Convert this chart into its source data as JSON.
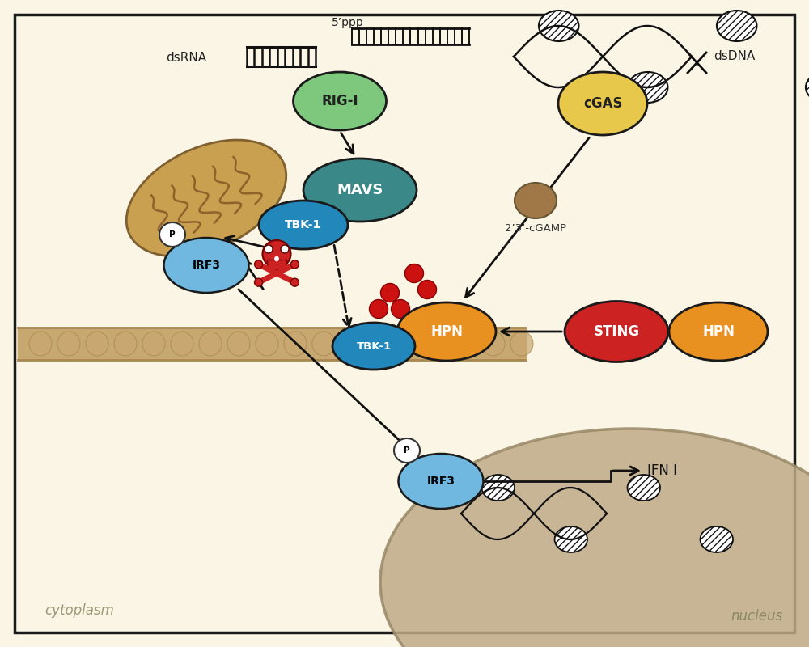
{
  "bg_color": "#FAF5E4",
  "border_color": "#1a1a1a",
  "colors": {
    "rigi": "#7DC87D",
    "cgas": "#E8C84A",
    "mavs": "#3A8888",
    "tbk1": "#2288BB",
    "hpn": "#E89020",
    "sting": "#CC2222",
    "irf3": "#70B8E0",
    "mito_outer": "#C8A050",
    "mito_inner": "#8B5A28",
    "cgamp_dot": "#A07848",
    "red_dots": "#CC1111",
    "nucleus_bg": "#C0AA88",
    "membrane": "#C8A870",
    "membrane_dark": "#A88850"
  },
  "labels": {
    "dsRNA": "dsRNA",
    "dsDNA": "dsDNA",
    "rigi": "RIG-I",
    "cgas": "cGAS",
    "mavs": "MAVS",
    "tbk1": "TBK-1",
    "hpn": "HPN",
    "sting": "STING",
    "irf3": "IRF3",
    "cgamp": "2’3’-cGAMP",
    "ifn": "IFN I",
    "cytoplasm": "cytoplasm",
    "nucleus": "nucleus",
    "ppp": "5’ppp"
  }
}
